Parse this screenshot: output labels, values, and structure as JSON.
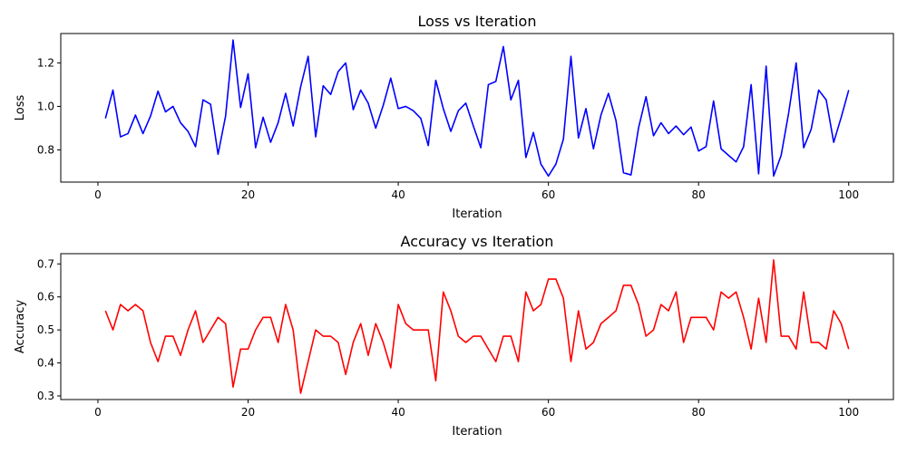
{
  "chart_data": [
    {
      "type": "line",
      "title": "Loss vs Iteration",
      "xlabel": "Iteration",
      "ylabel": "Loss",
      "xlim": [
        -4.95,
        105.95
      ],
      "ylim": [
        0.652,
        1.335
      ],
      "xticks": [
        0,
        20,
        40,
        60,
        80,
        100
      ],
      "yticks": [
        0.8,
        1.0,
        1.2
      ],
      "ytick_labels": [
        "0.8",
        "1.0",
        "1.2"
      ],
      "grid": false,
      "color": "#0000ff",
      "series": [
        {
          "x": [
            1,
            2,
            3,
            4,
            5,
            6,
            7,
            8,
            9,
            10,
            11,
            12,
            13,
            14,
            15,
            16,
            17,
            18,
            19,
            20,
            21,
            22,
            23,
            24,
            25,
            26,
            27,
            28,
            29,
            30,
            31,
            32,
            33,
            34,
            35,
            36,
            37,
            38,
            39,
            40,
            41,
            42,
            43,
            44,
            45,
            46,
            47,
            48,
            49,
            50,
            51,
            52,
            53,
            54,
            55,
            56,
            57,
            58,
            59,
            60,
            61,
            62,
            63,
            64,
            65,
            66,
            67,
            68,
            69,
            70,
            71,
            72,
            73,
            74,
            75,
            76,
            77,
            78,
            79,
            80,
            81,
            82,
            83,
            84,
            85,
            86,
            87,
            88,
            89,
            90,
            91,
            92,
            93,
            94,
            95,
            96,
            97,
            98,
            99,
            100
          ],
          "values": [
            0.945,
            1.075,
            0.86,
            0.875,
            0.96,
            0.875,
            0.955,
            1.07,
            0.975,
            1.0,
            0.925,
            0.885,
            0.815,
            1.03,
            1.01,
            0.78,
            0.955,
            1.305,
            0.995,
            1.15,
            0.81,
            0.95,
            0.835,
            0.925,
            1.06,
            0.91,
            1.09,
            1.23,
            0.86,
            1.095,
            1.055,
            1.16,
            1.2,
            0.985,
            1.075,
            1.015,
            0.9,
            1.005,
            1.13,
            0.99,
            1.0,
            0.98,
            0.945,
            0.82,
            1.12,
            0.99,
            0.885,
            0.98,
            1.015,
            0.91,
            0.81,
            1.1,
            1.115,
            1.275,
            1.03,
            1.12,
            0.765,
            0.88,
            0.735,
            0.68,
            0.735,
            0.85,
            1.23,
            0.855,
            0.99,
            0.805,
            0.96,
            1.06,
            0.935,
            0.695,
            0.685,
            0.9,
            1.045,
            0.865,
            0.925,
            0.875,
            0.91,
            0.87,
            0.905,
            0.795,
            0.815,
            1.025,
            0.805,
            0.775,
            0.745,
            0.815,
            1.1,
            0.69,
            1.185,
            0.68,
            0.775,
            0.97,
            1.2,
            0.81,
            0.895,
            1.075,
            1.03,
            0.835,
            0.95,
            1.075
          ]
        }
      ]
    },
    {
      "type": "line",
      "title": "Accuracy vs Iteration",
      "xlabel": "Iteration",
      "ylabel": "Accuracy",
      "xlim": [
        -4.95,
        105.95
      ],
      "ylim": [
        0.289,
        0.731
      ],
      "xticks": [
        0,
        20,
        40,
        60,
        80,
        100
      ],
      "yticks": [
        0.3,
        0.4,
        0.5,
        0.6,
        0.7
      ],
      "ytick_labels": [
        "0.3",
        "0.4",
        "0.5",
        "0.6",
        "0.7"
      ],
      "grid": false,
      "color": "#ff0000",
      "series": [
        {
          "x": [
            1,
            2,
            3,
            4,
            5,
            6,
            7,
            8,
            9,
            10,
            11,
            12,
            13,
            14,
            15,
            16,
            17,
            18,
            19,
            20,
            21,
            22,
            23,
            24,
            25,
            26,
            27,
            28,
            29,
            30,
            31,
            32,
            33,
            34,
            35,
            36,
            37,
            38,
            39,
            40,
            41,
            42,
            43,
            44,
            45,
            46,
            47,
            48,
            49,
            50,
            51,
            52,
            53,
            54,
            55,
            56,
            57,
            58,
            59,
            60,
            61,
            62,
            63,
            64,
            65,
            66,
            67,
            68,
            69,
            70,
            71,
            72,
            73,
            74,
            75,
            76,
            77,
            78,
            79,
            80,
            81,
            82,
            83,
            84,
            85,
            86,
            87,
            88,
            89,
            90,
            91,
            92,
            93,
            94,
            95,
            96,
            97,
            98,
            99,
            100
          ],
          "values": [
            0.558,
            0.5,
            0.577,
            0.558,
            0.577,
            0.558,
            0.462,
            0.404,
            0.481,
            0.481,
            0.423,
            0.5,
            0.558,
            0.462,
            0.5,
            0.538,
            0.519,
            0.327,
            0.442,
            0.442,
            0.5,
            0.538,
            0.538,
            0.462,
            0.577,
            0.5,
            0.308,
            0.404,
            0.5,
            0.481,
            0.481,
            0.462,
            0.365,
            0.462,
            0.519,
            0.423,
            0.519,
            0.462,
            0.385,
            0.577,
            0.519,
            0.5,
            0.5,
            0.5,
            0.346,
            0.615,
            0.558,
            0.481,
            0.462,
            0.481,
            0.481,
            0.442,
            0.404,
            0.481,
            0.481,
            0.404,
            0.615,
            0.558,
            0.577,
            0.654,
            0.654,
            0.596,
            0.404,
            0.558,
            0.442,
            0.462,
            0.519,
            0.538,
            0.558,
            0.635,
            0.635,
            0.577,
            0.481,
            0.5,
            0.577,
            0.558,
            0.615,
            0.462,
            0.538,
            0.538,
            0.538,
            0.5,
            0.615,
            0.596,
            0.615,
            0.538,
            0.442,
            0.596,
            0.462,
            0.712,
            0.481,
            0.481,
            0.442,
            0.615,
            0.462,
            0.462,
            0.442,
            0.558,
            0.519,
            0.442
          ]
        }
      ]
    }
  ]
}
